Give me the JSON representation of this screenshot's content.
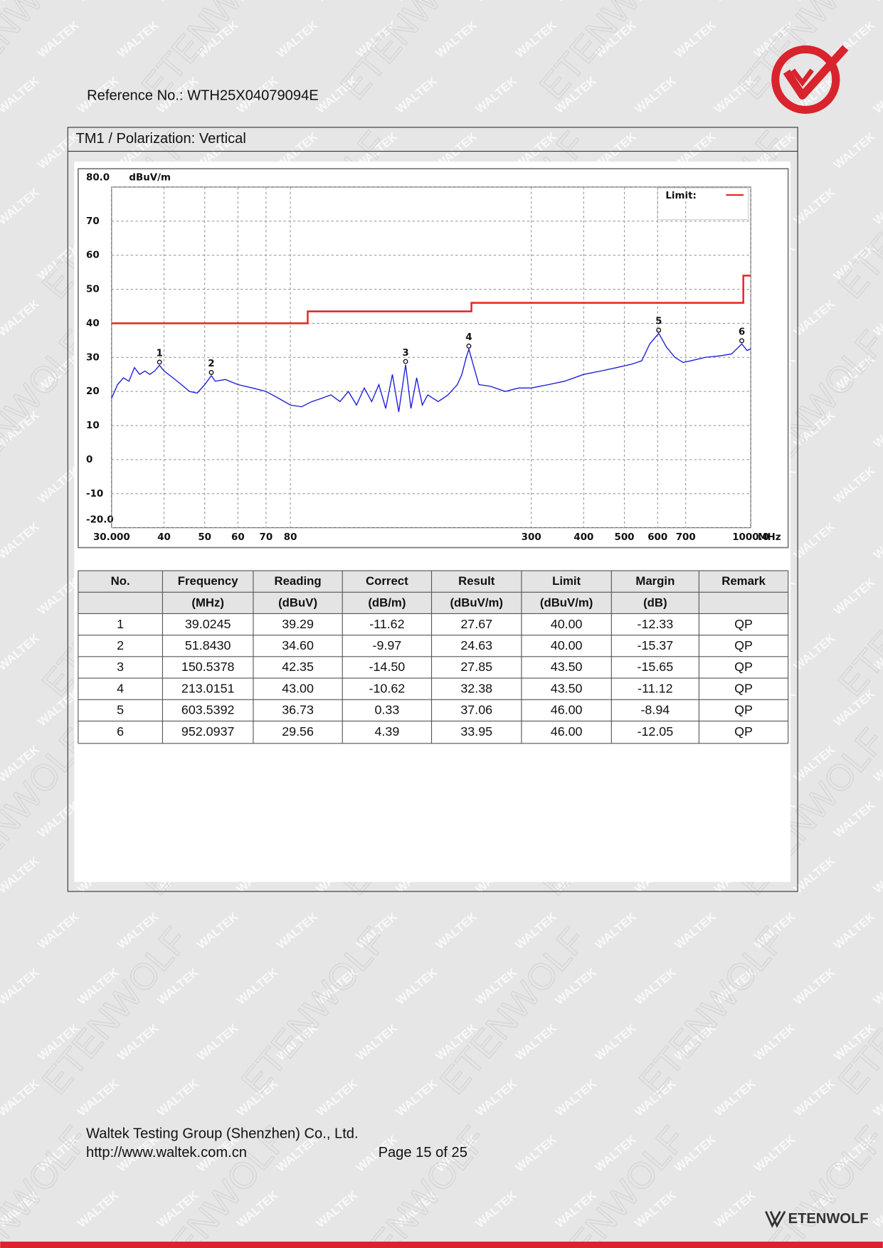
{
  "header": {
    "reference": "Reference No.: WTH25X04079094E"
  },
  "section": {
    "title": "TM1 / Polarization: Vertical"
  },
  "chart_data": {
    "type": "line",
    "y_unit": "dBuV/m",
    "x_unit": "MHz",
    "log_x": true,
    "grid": true,
    "xlim": [
      30,
      1000
    ],
    "ylim": [
      -20,
      80
    ],
    "xticks": [
      {
        "value": 30,
        "label": "30.000"
      },
      40,
      50,
      60,
      70,
      80,
      300,
      400,
      500,
      600,
      700,
      {
        "value": 1000,
        "label": "1000.0"
      }
    ],
    "yticks": [
      {
        "value": 80,
        "label": "80.0"
      },
      70,
      60,
      50,
      40,
      30,
      20,
      10,
      0,
      -10,
      {
        "value": -20,
        "label": "-20.0"
      }
    ],
    "legend": {
      "label": "Limit:",
      "position": "top-right"
    },
    "series": [
      {
        "color": "#e8231f",
        "x": [
          30,
          88,
          88,
          216,
          216,
          960,
          960,
          1000
        ],
        "values": [
          40,
          40,
          43.5,
          43.5,
          46,
          46,
          54,
          54
        ]
      },
      {
        "color": "#1a1adc",
        "x": [
          30,
          31,
          32,
          33,
          34,
          35,
          36,
          37,
          38,
          39.0245,
          40,
          42,
          44,
          46,
          48,
          50,
          51.843,
          53,
          56,
          60,
          65,
          70,
          75,
          80,
          85,
          90,
          95,
          100,
          105,
          110,
          115,
          120,
          125,
          130,
          135,
          140,
          145,
          150.5378,
          155,
          160,
          165,
          170,
          180,
          190,
          200,
          205,
          210,
          213.0151,
          218,
          225,
          240,
          260,
          280,
          300,
          330,
          360,
          400,
          440,
          480,
          520,
          550,
          575,
          603.5392,
          630,
          660,
          690,
          720,
          780,
          850,
          900,
          952.0937,
          980,
          1000
        ],
        "values": [
          18,
          22,
          24,
          23,
          27,
          25,
          26,
          25,
          26,
          27.67,
          26,
          24,
          22,
          20,
          19.5,
          22,
          24.63,
          23,
          23.5,
          22,
          21,
          20,
          18,
          16,
          15.5,
          17,
          18,
          19,
          17,
          20,
          16,
          21,
          17,
          22,
          15,
          25,
          14,
          27.85,
          15,
          24,
          16,
          19,
          17,
          19,
          22,
          25,
          30,
          32.38,
          28,
          22,
          21.5,
          20,
          21,
          21,
          22,
          23,
          25,
          26,
          27,
          28,
          29,
          34,
          37.06,
          33,
          30,
          28.5,
          29,
          30,
          30.5,
          31,
          33.95,
          32,
          32.5
        ]
      }
    ],
    "markers": [
      {
        "label": "1",
        "x": 39.0245,
        "y": 27.67
      },
      {
        "label": "2",
        "x": 51.843,
        "y": 24.63
      },
      {
        "label": "3",
        "x": 150.5378,
        "y": 27.85
      },
      {
        "label": "4",
        "x": 213.0151,
        "y": 32.38
      },
      {
        "label": "5",
        "x": 603.5392,
        "y": 37.06
      },
      {
        "label": "6",
        "x": 952.0937,
        "y": 33.95
      }
    ]
  },
  "table": {
    "columns": [
      {
        "name": "No."
      },
      {
        "name": "Frequency",
        "unit": "(MHz)"
      },
      {
        "name": "Reading",
        "unit": "(dBuV)"
      },
      {
        "name": "Correct",
        "unit": "(dB/m)"
      },
      {
        "name": "Result",
        "unit": "(dBuV/m)"
      },
      {
        "name": "Limit",
        "unit": "(dBuV/m)"
      },
      {
        "name": "Margin",
        "unit": "(dB)"
      },
      {
        "name": "Remark"
      }
    ],
    "rows": [
      [
        "1",
        "39.0245",
        "39.29",
        "-11.62",
        "27.67",
        "40.00",
        "-12.33",
        "QP"
      ],
      [
        "2",
        "51.8430",
        "34.60",
        "-9.97",
        "24.63",
        "40.00",
        "-15.37",
        "QP"
      ],
      [
        "3",
        "150.5378",
        "42.35",
        "-14.50",
        "27.85",
        "43.50",
        "-15.65",
        "QP"
      ],
      [
        "4",
        "213.0151",
        "43.00",
        "-10.62",
        "32.38",
        "43.50",
        "-11.12",
        "QP"
      ],
      [
        "5",
        "603.5392",
        "36.73",
        "0.33",
        "37.06",
        "46.00",
        "-8.94",
        "QP"
      ],
      [
        "6",
        "952.0937",
        "29.56",
        "4.39",
        "33.95",
        "46.00",
        "-12.05",
        "QP"
      ]
    ]
  },
  "footer": {
    "company": "Waltek Testing Group (Shenzhen) Co., Ltd.",
    "url": "http://www.waltek.com.cn",
    "page": "Page 15 of 25"
  },
  "brand": {
    "name": "ETENWOLF"
  },
  "watermark": {
    "small": "WALTEK",
    "large": "ETENWOLF"
  }
}
